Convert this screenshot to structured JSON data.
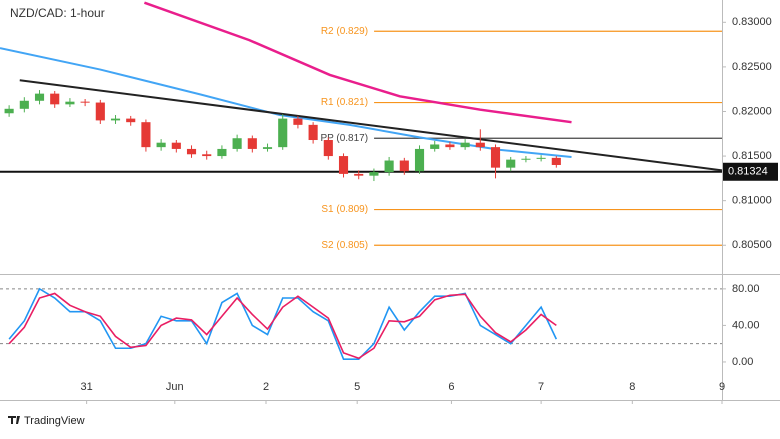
{
  "chart_data": [
    {
      "type": "candlestick",
      "title": "NZD/CAD: 1-hour",
      "up_color": "#4caf50",
      "down_color": "#e53935",
      "x": [
        0.6,
        1.6,
        2.6,
        3.6,
        4.6,
        5.6,
        6.6,
        7.6,
        8.6,
        9.6,
        10.6,
        11.6,
        12.6,
        13.6,
        14.6,
        15.6,
        16.6,
        17.6,
        18.6,
        19.6,
        20.6,
        21.6,
        22.6,
        23.6,
        24.6,
        25.6,
        26.6,
        27.6,
        28.6,
        29.6,
        30.6,
        31.6,
        32.6,
        33.6,
        34.6,
        35.6,
        36.6
      ],
      "open": [
        0.8198,
        0.8203,
        0.8212,
        0.822,
        0.8208,
        0.8211,
        0.821,
        0.819,
        0.8192,
        0.8188,
        0.816,
        0.8165,
        0.8158,
        0.8152,
        0.815,
        0.8158,
        0.817,
        0.8158,
        0.816,
        0.8192,
        0.8185,
        0.8168,
        0.815,
        0.813,
        0.8128,
        0.8132,
        0.8145,
        0.8133,
        0.8158,
        0.8163,
        0.816,
        0.8165,
        0.816,
        0.8137,
        0.8146,
        0.8147,
        0.8148
      ],
      "high": [
        0.8207,
        0.8216,
        0.8224,
        0.8223,
        0.8215,
        0.8214,
        0.8213,
        0.8196,
        0.8195,
        0.8191,
        0.8169,
        0.8168,
        0.8162,
        0.8156,
        0.8162,
        0.8174,
        0.8173,
        0.8164,
        0.8197,
        0.8195,
        0.8188,
        0.8171,
        0.8153,
        0.8134,
        0.8136,
        0.8149,
        0.8148,
        0.8162,
        0.8167,
        0.8166,
        0.8169,
        0.818,
        0.8163,
        0.8149,
        0.815,
        0.8151,
        0.815
      ],
      "low": [
        0.8194,
        0.8199,
        0.8208,
        0.8204,
        0.8205,
        0.8206,
        0.8186,
        0.8186,
        0.8184,
        0.8155,
        0.8156,
        0.8154,
        0.8148,
        0.8146,
        0.8147,
        0.8155,
        0.8154,
        0.8155,
        0.8157,
        0.8181,
        0.8164,
        0.8146,
        0.8126,
        0.8124,
        0.8122,
        0.8128,
        0.8129,
        0.813,
        0.8155,
        0.8157,
        0.8157,
        0.8156,
        0.8125,
        0.8133,
        0.8143,
        0.8144,
        0.8137
      ],
      "close": [
        0.8203,
        0.8212,
        0.822,
        0.8208,
        0.8211,
        0.821,
        0.819,
        0.8192,
        0.8188,
        0.816,
        0.8165,
        0.8158,
        0.8152,
        0.815,
        0.8158,
        0.817,
        0.8158,
        0.816,
        0.8192,
        0.8185,
        0.8168,
        0.815,
        0.813,
        0.8128,
        0.8132,
        0.8145,
        0.8133,
        0.8158,
        0.8163,
        0.816,
        0.8165,
        0.816,
        0.8137,
        0.8146,
        0.8147,
        0.8148,
        0.814
      ],
      "series": [
        {
          "color": "#42a5f5",
          "x": [
            0,
            6.6,
            13.2,
            18.4,
            23.0,
            27.6,
            32.9,
            37.6
          ],
          "values": [
            0.8271,
            0.8247,
            0.8219,
            0.8196,
            0.8185,
            0.8171,
            0.8157,
            0.8149
          ]
        },
        {
          "color": "#e91e8c",
          "x": [
            9.5,
            16.4,
            21.7,
            26.3,
            31.6,
            37.6
          ],
          "values": [
            0.8322,
            0.828,
            0.8241,
            0.8217,
            0.8202,
            0.8188
          ]
        }
      ],
      "trendline": {
        "color": "#222222",
        "x": [
          1.3,
          47.5
        ],
        "values": [
          0.8235,
          0.8134
        ]
      },
      "support": {
        "color": "#111111",
        "value": 0.81324
      },
      "pivot_color": "#f7941d",
      "pivot_start": 22.9,
      "pivots": [
        {
          "label": "R2 (0.829)",
          "value": 0.829,
          "color": "#f7941d"
        },
        {
          "label": "R1 (0.821)",
          "value": 0.821,
          "color": "#f7941d"
        },
        {
          "label": "PP (0.817)",
          "value": 0.817,
          "color": "#444444"
        },
        {
          "label": "S1 (0.809)",
          "value": 0.809,
          "color": "#f7941d"
        },
        {
          "label": "S2 (0.805)",
          "value": 0.805,
          "color": "#f7941d"
        }
      ],
      "xlim": [
        0,
        47.5
      ],
      "ylim": [
        0.802,
        0.8325
      ],
      "yticks": [
        {
          "value": 0.83,
          "label": "0.83000"
        },
        {
          "value": 0.825,
          "label": "0.82500"
        },
        {
          "value": 0.82,
          "label": "0.82000"
        },
        {
          "value": 0.815,
          "label": "0.81500"
        },
        {
          "value": 0.81,
          "label": "0.81000"
        },
        {
          "value": 0.805,
          "label": "0.80500"
        }
      ]
    },
    {
      "type": "line",
      "x": [
        0.6,
        1.6,
        2.6,
        3.6,
        4.6,
        5.6,
        6.6,
        7.6,
        8.6,
        9.6,
        10.6,
        11.6,
        12.6,
        13.6,
        14.6,
        15.6,
        16.6,
        17.6,
        18.6,
        19.6,
        20.6,
        21.6,
        22.6,
        23.6,
        24.6,
        25.6,
        26.6,
        27.6,
        28.6,
        29.6,
        30.6,
        31.6,
        32.6,
        33.6,
        34.6,
        35.6,
        36.6
      ],
      "series": [
        {
          "color": "#2196f3",
          "values": [
            25,
            45,
            80,
            70,
            55,
            55,
            45,
            15,
            15,
            20,
            50,
            45,
            45,
            20,
            65,
            75,
            40,
            30,
            70,
            70,
            55,
            45,
            3,
            3,
            20,
            60,
            35,
            55,
            72,
            72,
            75,
            40,
            30,
            20,
            40,
            60,
            25
          ]
        },
        {
          "color": "#e91e63",
          "values": [
            20,
            38,
            70,
            75,
            62,
            55,
            50,
            28,
            16,
            18,
            40,
            48,
            46,
            30,
            50,
            70,
            52,
            36,
            60,
            72,
            60,
            48,
            10,
            4,
            15,
            45,
            44,
            50,
            68,
            73,
            74,
            50,
            32,
            22,
            35,
            52,
            40
          ]
        }
      ],
      "levels": [
        80,
        20
      ],
      "xlim": [
        0,
        47.5
      ],
      "ylim": [
        -11,
        93
      ],
      "yticks": [
        {
          "value": 80,
          "label": "80.00"
        },
        {
          "value": 40,
          "label": "40.00"
        },
        {
          "value": 0,
          "label": "0.00"
        }
      ],
      "xticks": [
        {
          "value": 5.7,
          "label": "31"
        },
        {
          "value": 11.5,
          "label": "Jun"
        },
        {
          "value": 17.5,
          "label": "2"
        },
        {
          "value": 23.5,
          "label": "5"
        },
        {
          "value": 29.7,
          "label": "6"
        },
        {
          "value": 35.6,
          "label": "7"
        },
        {
          "value": 41.6,
          "label": "8"
        },
        {
          "value": 47.5,
          "label": "9"
        }
      ]
    }
  ],
  "footer": "TradingView"
}
